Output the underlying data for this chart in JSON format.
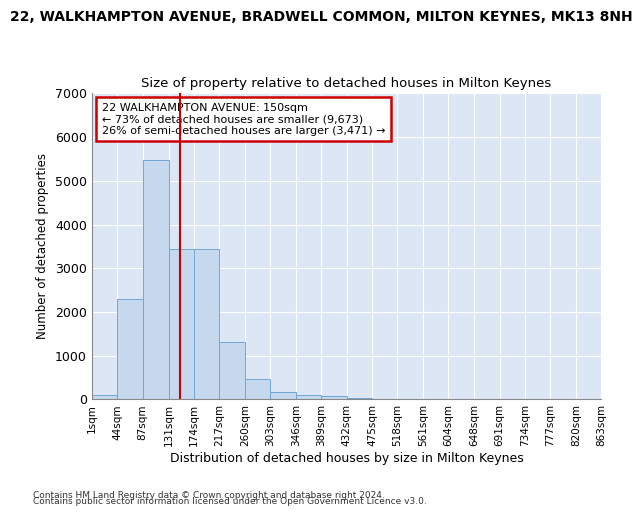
{
  "title": "22, WALKHAMPTON AVENUE, BRADWELL COMMON, MILTON KEYNES, MK13 8NH",
  "subtitle": "Size of property relative to detached houses in Milton Keynes",
  "xlabel": "Distribution of detached houses by size in Milton Keynes",
  "ylabel": "Number of detached properties",
  "footnote1": "Contains HM Land Registry data © Crown copyright and database right 2024.",
  "footnote2": "Contains public sector information licensed under the Open Government Licence v3.0.",
  "bin_edges": [
    1,
    44,
    87,
    131,
    174,
    217,
    260,
    303,
    346,
    389,
    432,
    475,
    518,
    561,
    604,
    648,
    691,
    734,
    777,
    820,
    863
  ],
  "bar_values": [
    100,
    2290,
    5470,
    3450,
    3450,
    1310,
    460,
    175,
    110,
    75,
    30,
    10,
    5,
    2,
    1,
    0,
    0,
    0,
    0,
    0
  ],
  "bar_color": "#c5d8ee",
  "bar_edge_color": "#6fa8d4",
  "bar_alpha": 1.0,
  "vline_x": 150,
  "vline_color": "#cc0000",
  "annotation_text": "22 WALKHAMPTON AVENUE: 150sqm\n← 73% of detached houses are smaller (9,673)\n26% of semi-detached houses are larger (3,471) →",
  "annotation_box_color": "white",
  "annotation_edge_color": "#cc0000",
  "ylim": [
    0,
    7000
  ],
  "xlim": [
    1,
    863
  ],
  "fig_bg_color": "#ffffff",
  "plot_bg_color": "#dce6f5",
  "grid_color": "white",
  "title_fontsize": 10,
  "subtitle_fontsize": 9.5,
  "xlabel_fontsize": 9,
  "ylabel_fontsize": 8.5,
  "tick_label_size": 7.5,
  "annotation_fontsize": 8,
  "footnote_fontsize": 6.5
}
